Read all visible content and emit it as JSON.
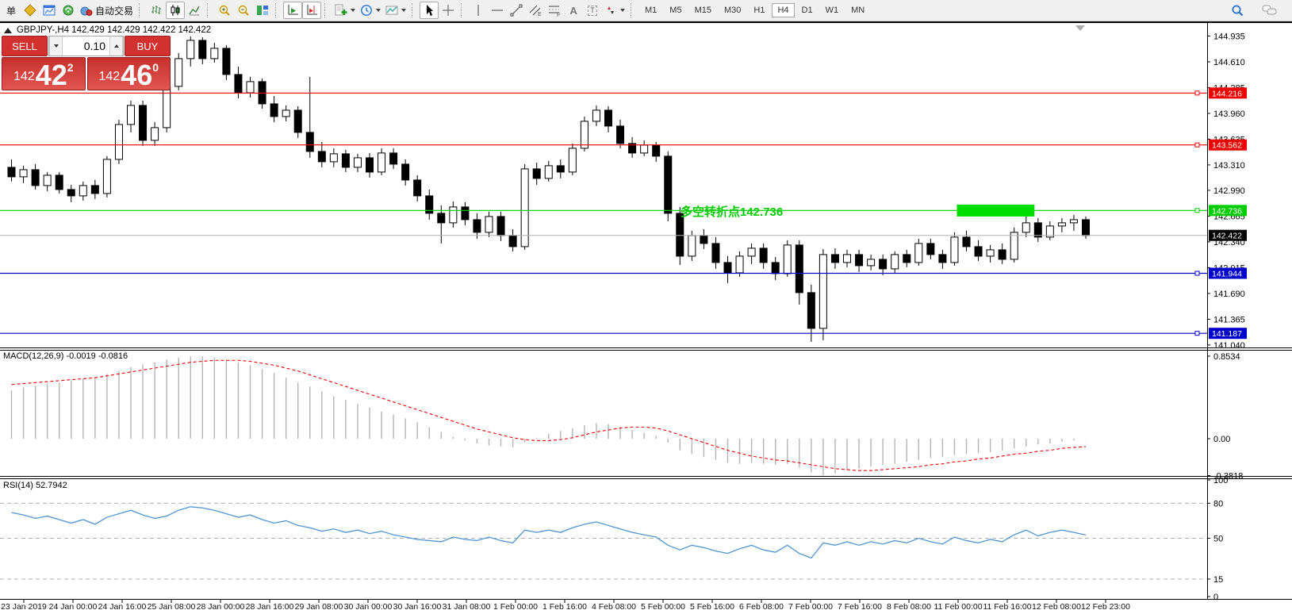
{
  "toolbar": {
    "new_order_label": "单",
    "autotrading_label": "自动交易",
    "periods": [
      "M1",
      "M5",
      "M15",
      "M30",
      "H1",
      "H4",
      "D1",
      "W1",
      "MN"
    ],
    "active_period": "H4",
    "glyphs": {
      "channel": "E",
      "fib": "F",
      "text": "A",
      "label": "T"
    },
    "icon_names": [
      "market-watch",
      "chart-window",
      "signals",
      "autotrading",
      "bar-chart",
      "candlestick",
      "line-chart",
      "zoom-in",
      "zoom-out",
      "tile-windows",
      "auto-scroll",
      "chart-shift",
      "indicators",
      "periods-clock",
      "templates",
      "cursor",
      "crosshair",
      "vertical-line",
      "horizontal-line",
      "trendline",
      "equidistant-channel",
      "fibonacci",
      "text",
      "text-label",
      "arrows",
      "search",
      "comments"
    ]
  },
  "header": {
    "ohlc_line": "GBPJPY-,H4  142.429 142.429 142.422 142.422"
  },
  "trade_panel": {
    "sell_label": "SELL",
    "buy_label": "BUY",
    "volume": "0.10",
    "sell_price": {
      "prefix": "142",
      "big": "42",
      "sup": "2"
    },
    "buy_price": {
      "prefix": "142",
      "big": "46",
      "sup": "0"
    }
  },
  "annotation": {
    "text": "多空转折点142.736",
    "color": "#00cc00"
  },
  "indicators": {
    "macd_label": "MACD(12,26,9) -0.0019 -0.0816",
    "rsi_label": "RSI(14) 52.7942"
  },
  "chart_data": [
    {
      "type": "candlestick",
      "title": "GBPJPY-,H4",
      "ohlc": [
        142.429,
        142.429,
        142.422,
        142.422
      ],
      "ylim": [
        141.04,
        144.935
      ],
      "y_ticks": [
        144.935,
        144.61,
        144.285,
        143.96,
        143.635,
        143.31,
        142.99,
        142.665,
        142.34,
        142.015,
        141.69,
        141.365,
        141.04
      ],
      "x_labels": [
        "23 Jan 2019",
        "24 Jan 00:00",
        "24 Jan 16:00",
        "25 Jan 08:00",
        "28 Jan 00:00",
        "28 Jan 16:00",
        "29 Jan 08:00",
        "30 Jan 00:00",
        "30 Jan 16:00",
        "31 Jan 08:00",
        "1 Feb 00:00",
        "1 Feb 16:00",
        "4 Feb 08:00",
        "5 Feb 00:00",
        "5 Feb 16:00",
        "6 Feb 08:00",
        "7 Feb 00:00",
        "7 Feb 16:00",
        "8 Feb 08:00",
        "11 Feb 00:00",
        "11 Feb 16:00",
        "12 Feb 08:00",
        "12 Feb 23:00"
      ],
      "colors": {
        "bull": "#ffffff",
        "bear": "#000000",
        "wick": "#000000",
        "current_line": "#b0b0b0"
      },
      "hlines": [
        {
          "price": 144.216,
          "color": "#ee0000"
        },
        {
          "price": 143.562,
          "color": "#ee0000"
        },
        {
          "price": 142.736,
          "color": "#00cc00"
        },
        {
          "price": 141.944,
          "color": "#0000cc"
        },
        {
          "price": 141.187,
          "color": "#0000cc"
        }
      ],
      "current_price": 142.422,
      "highlight_rect": {
        "from_index": 79.5,
        "to_index": 86,
        "price_top": 142.81,
        "price_bottom": 142.66,
        "color": "#00dd00"
      },
      "candles": [
        [
          143.28,
          143.38,
          143.1,
          143.16
        ],
        [
          143.16,
          143.3,
          143.08,
          143.25
        ],
        [
          143.25,
          143.32,
          143.0,
          143.05
        ],
        [
          143.05,
          143.22,
          142.98,
          143.18
        ],
        [
          143.18,
          143.22,
          142.95,
          143.0
        ],
        [
          143.0,
          143.06,
          142.84,
          142.92
        ],
        [
          142.92,
          143.1,
          142.86,
          143.05
        ],
        [
          143.05,
          143.12,
          142.88,
          142.95
        ],
        [
          142.95,
          143.42,
          142.9,
          143.38
        ],
        [
          143.38,
          143.88,
          143.32,
          143.82
        ],
        [
          143.82,
          144.12,
          143.72,
          144.06
        ],
        [
          144.06,
          144.12,
          143.55,
          143.62
        ],
        [
          143.62,
          143.85,
          143.55,
          143.78
        ],
        [
          143.78,
          144.35,
          143.72,
          144.3
        ],
        [
          144.3,
          144.72,
          144.25,
          144.65
        ],
        [
          144.65,
          144.93,
          144.55,
          144.88
        ],
        [
          144.88,
          144.92,
          144.58,
          144.65
        ],
        [
          144.65,
          144.85,
          144.6,
          144.78
        ],
        [
          144.78,
          144.82,
          144.38,
          144.45
        ],
        [
          144.45,
          144.55,
          144.15,
          144.22
        ],
        [
          144.22,
          144.42,
          144.16,
          144.36
        ],
        [
          144.36,
          144.4,
          144.02,
          144.08
        ],
        [
          144.08,
          144.18,
          143.85,
          143.92
        ],
        [
          143.92,
          144.06,
          143.86,
          144.0
        ],
        [
          144.0,
          144.05,
          143.65,
          143.72
        ],
        [
          143.72,
          144.42,
          143.4,
          143.48
        ],
        [
          143.48,
          143.6,
          143.28,
          143.35
        ],
        [
          143.35,
          143.52,
          143.28,
          143.45
        ],
        [
          143.45,
          143.5,
          143.22,
          143.28
        ],
        [
          143.28,
          143.45,
          143.22,
          143.4
        ],
        [
          143.4,
          143.46,
          143.15,
          143.22
        ],
        [
          143.22,
          143.52,
          143.18,
          143.46
        ],
        [
          143.46,
          143.52,
          143.26,
          143.32
        ],
        [
          143.32,
          143.38,
          143.05,
          143.12
        ],
        [
          143.12,
          143.18,
          142.85,
          142.92
        ],
        [
          142.92,
          143.0,
          142.62,
          142.7
        ],
        [
          142.7,
          142.8,
          142.32,
          142.58
        ],
        [
          142.58,
          142.85,
          142.52,
          142.78
        ],
        [
          142.78,
          142.84,
          142.55,
          142.62
        ],
        [
          142.62,
          142.7,
          142.38,
          142.46
        ],
        [
          142.46,
          142.72,
          142.4,
          142.66
        ],
        [
          142.66,
          142.72,
          142.35,
          142.42
        ],
        [
          142.42,
          142.5,
          142.22,
          142.28
        ],
        [
          142.28,
          143.32,
          142.24,
          143.26
        ],
        [
          143.26,
          143.34,
          143.06,
          143.14
        ],
        [
          143.14,
          143.36,
          143.1,
          143.3
        ],
        [
          143.3,
          143.38,
          143.14,
          143.22
        ],
        [
          143.22,
          143.58,
          143.18,
          143.52
        ],
        [
          143.52,
          143.92,
          143.48,
          143.86
        ],
        [
          143.86,
          144.06,
          143.8,
          144.0
        ],
        [
          144.0,
          144.05,
          143.72,
          143.8
        ],
        [
          143.8,
          143.88,
          143.52,
          143.58
        ],
        [
          143.58,
          143.66,
          143.4,
          143.46
        ],
        [
          143.46,
          143.62,
          143.42,
          143.56
        ],
        [
          143.56,
          143.6,
          143.35,
          143.42
        ],
        [
          143.42,
          143.48,
          142.6,
          142.7
        ],
        [
          142.7,
          142.78,
          142.05,
          142.16
        ],
        [
          142.16,
          142.48,
          142.1,
          142.42
        ],
        [
          142.42,
          142.5,
          142.25,
          142.32
        ],
        [
          142.32,
          142.4,
          142.0,
          142.08
        ],
        [
          142.08,
          142.16,
          141.82,
          141.95
        ],
        [
          141.95,
          142.22,
          141.9,
          142.16
        ],
        [
          142.16,
          142.32,
          142.06,
          142.26
        ],
        [
          142.26,
          142.32,
          142.0,
          142.08
        ],
        [
          142.08,
          142.15,
          141.86,
          141.94
        ],
        [
          141.94,
          142.36,
          141.9,
          142.3
        ],
        [
          142.3,
          142.36,
          141.55,
          141.7
        ],
        [
          141.7,
          141.8,
          141.08,
          141.25
        ],
        [
          141.25,
          142.25,
          141.1,
          142.18
        ],
        [
          142.18,
          142.26,
          142.0,
          142.08
        ],
        [
          142.08,
          142.24,
          142.02,
          142.18
        ],
        [
          142.18,
          142.24,
          141.96,
          142.04
        ],
        [
          142.04,
          142.18,
          141.98,
          142.12
        ],
        [
          142.12,
          142.18,
          141.92,
          142.0
        ],
        [
          142.0,
          142.22,
          141.95,
          142.18
        ],
        [
          142.18,
          142.24,
          142.02,
          142.08
        ],
        [
          142.08,
          142.38,
          142.04,
          142.32
        ],
        [
          142.32,
          142.38,
          142.12,
          142.18
        ],
        [
          142.18,
          142.24,
          142.0,
          142.08
        ],
        [
          142.08,
          142.46,
          142.04,
          142.4
        ],
        [
          142.4,
          142.48,
          142.22,
          142.28
        ],
        [
          142.28,
          142.36,
          142.1,
          142.16
        ],
        [
          142.16,
          142.3,
          142.08,
          142.24
        ],
        [
          142.24,
          142.32,
          142.06,
          142.12
        ],
        [
          142.12,
          142.52,
          142.08,
          142.46
        ],
        [
          142.46,
          142.66,
          142.4,
          142.58
        ],
        [
          142.58,
          142.64,
          142.34,
          142.4
        ],
        [
          142.4,
          142.6,
          142.36,
          142.54
        ],
        [
          142.54,
          142.64,
          142.46,
          142.58
        ],
        [
          142.58,
          142.68,
          142.48,
          142.62
        ],
        [
          142.62,
          142.66,
          142.38,
          142.42
        ]
      ]
    },
    {
      "type": "bar",
      "title": "MACD(12,26,9)",
      "last_values": [
        -0.0019,
        -0.0816
      ],
      "y_ticks": [
        "0.8534",
        "0.00",
        "-0.3818"
      ],
      "ylim": [
        -0.3818,
        0.8534
      ],
      "colors": {
        "histogram": "#b4b4b4",
        "signal": "#ee0000"
      },
      "series": [
        {
          "name": "main",
          "values": [
            0.5,
            0.53,
            0.55,
            0.57,
            0.58,
            0.6,
            0.62,
            0.64,
            0.67,
            0.7,
            0.74,
            0.77,
            0.79,
            0.82,
            0.84,
            0.85,
            0.85,
            0.84,
            0.82,
            0.79,
            0.76,
            0.72,
            0.68,
            0.63,
            0.58,
            0.54,
            0.49,
            0.44,
            0.4,
            0.36,
            0.32,
            0.28,
            0.25,
            0.21,
            0.17,
            0.12,
            0.07,
            0.02,
            -0.02,
            -0.05,
            -0.07,
            -0.08,
            -0.09,
            -0.04,
            0.01,
            0.05,
            0.08,
            0.11,
            0.14,
            0.16,
            0.15,
            0.12,
            0.09,
            0.06,
            0.03,
            -0.04,
            -0.12,
            -0.16,
            -0.19,
            -0.22,
            -0.25,
            -0.26,
            -0.25,
            -0.26,
            -0.27,
            -0.26,
            -0.3,
            -0.35,
            -0.38,
            -0.36,
            -0.33,
            -0.31,
            -0.29,
            -0.27,
            -0.26,
            -0.24,
            -0.22,
            -0.2,
            -0.19,
            -0.17,
            -0.16,
            -0.15,
            -0.14,
            -0.12,
            -0.1,
            -0.08,
            -0.06,
            -0.05,
            -0.03,
            -0.02,
            -0.002
          ]
        },
        {
          "name": "signal",
          "values": [
            0.56,
            0.57,
            0.58,
            0.59,
            0.6,
            0.61,
            0.62,
            0.63,
            0.65,
            0.67,
            0.69,
            0.71,
            0.73,
            0.75,
            0.77,
            0.79,
            0.8,
            0.81,
            0.81,
            0.81,
            0.8,
            0.78,
            0.76,
            0.73,
            0.7,
            0.66,
            0.62,
            0.58,
            0.54,
            0.5,
            0.46,
            0.42,
            0.38,
            0.34,
            0.3,
            0.26,
            0.22,
            0.18,
            0.14,
            0.1,
            0.07,
            0.04,
            0.01,
            -0.01,
            -0.02,
            -0.02,
            -0.01,
            0.01,
            0.04,
            0.07,
            0.09,
            0.11,
            0.12,
            0.12,
            0.11,
            0.08,
            0.04,
            0.0,
            -0.04,
            -0.08,
            -0.12,
            -0.15,
            -0.18,
            -0.2,
            -0.22,
            -0.23,
            -0.25,
            -0.27,
            -0.29,
            -0.31,
            -0.32,
            -0.33,
            -0.33,
            -0.32,
            -0.31,
            -0.3,
            -0.29,
            -0.27,
            -0.26,
            -0.24,
            -0.23,
            -0.21,
            -0.2,
            -0.18,
            -0.16,
            -0.15,
            -0.13,
            -0.12,
            -0.1,
            -0.09,
            -0.082
          ]
        }
      ]
    },
    {
      "type": "line",
      "title": "RSI(14)",
      "last_value": 52.7942,
      "ylim": [
        0,
        100
      ],
      "levels": [
        80,
        50,
        15
      ],
      "y_ticks": [
        100,
        80,
        50,
        15,
        0
      ],
      "color": "#4f96d2",
      "values": [
        72,
        70,
        67,
        69,
        66,
        63,
        66,
        62,
        68,
        71,
        74,
        70,
        67,
        69,
        74,
        77,
        76,
        74,
        71,
        68,
        70,
        66,
        63,
        65,
        61,
        59,
        56,
        58,
        55,
        57,
        54,
        56,
        53,
        51,
        49,
        48,
        47,
        51,
        49,
        48,
        51,
        48,
        46,
        57,
        55,
        57,
        55,
        59,
        62,
        64,
        61,
        58,
        55,
        53,
        51,
        44,
        40,
        44,
        42,
        39,
        37,
        41,
        44,
        40,
        38,
        44,
        37,
        33,
        46,
        44,
        47,
        44,
        47,
        45,
        48,
        46,
        50,
        47,
        45,
        51,
        48,
        46,
        49,
        47,
        53,
        57,
        52,
        55,
        57,
        55,
        52.79
      ]
    }
  ]
}
